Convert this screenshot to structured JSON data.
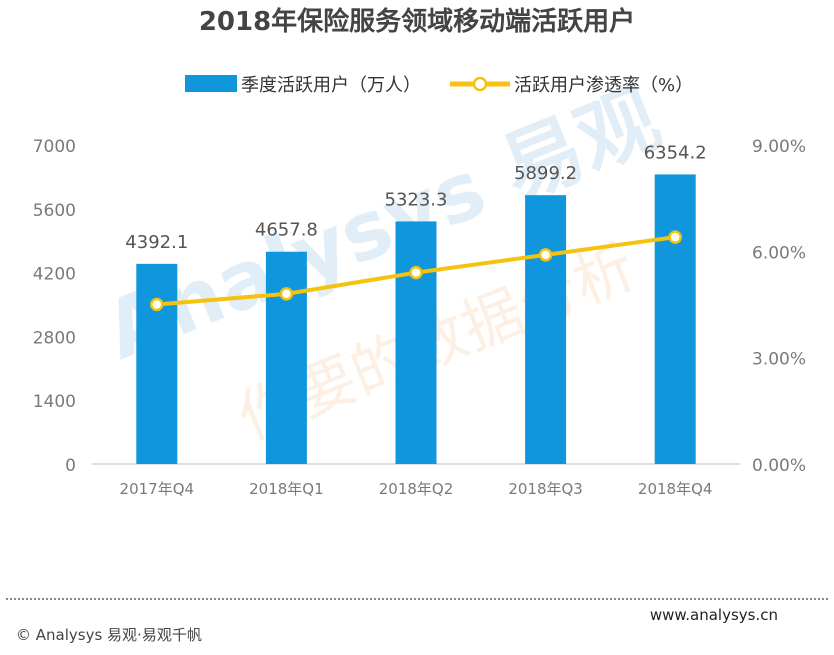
{
  "chart_data": {
    "type": "bar+line",
    "title": "2018年保险服务领域移动端活跃用户",
    "categories": [
      "2017年Q4",
      "2018年Q1",
      "2018年Q2",
      "2018年Q3",
      "2018年Q4"
    ],
    "bar_series": {
      "name": "季度活跃用户（万人）",
      "values": [
        4392.1,
        4657.8,
        5323.3,
        5899.2,
        6354.2
      ],
      "labels": [
        "4392.1",
        "4657.8",
        "5323.3",
        "5899.2",
        "6354.2"
      ],
      "color": "#0f96dd"
    },
    "line_series": {
      "name": "活跃用户渗透率（%）",
      "values": [
        4.5,
        4.8,
        5.4,
        5.9,
        6.4
      ],
      "color": "#f5c30f"
    },
    "y_left": {
      "min": 0,
      "max": 7000,
      "ticks": [
        0,
        1400,
        2800,
        4200,
        5600,
        7000
      ],
      "tick_labels": [
        "0",
        "1400",
        "2800",
        "4200",
        "5600",
        "7000"
      ]
    },
    "y_right": {
      "min": 0,
      "max": 9,
      "ticks": [
        0,
        3,
        6,
        9
      ],
      "tick_labels": [
        "0.00%",
        "3.00%",
        "6.00%",
        "9.00%"
      ]
    },
    "legend_position": "top-center",
    "grid": false
  },
  "watermark": {
    "main": "Analysys 易观",
    "sub": "你要的数据分析"
  },
  "footer": {
    "copyright": "© Analysys 易观·易观千帆",
    "website": "www.analysys.cn"
  }
}
